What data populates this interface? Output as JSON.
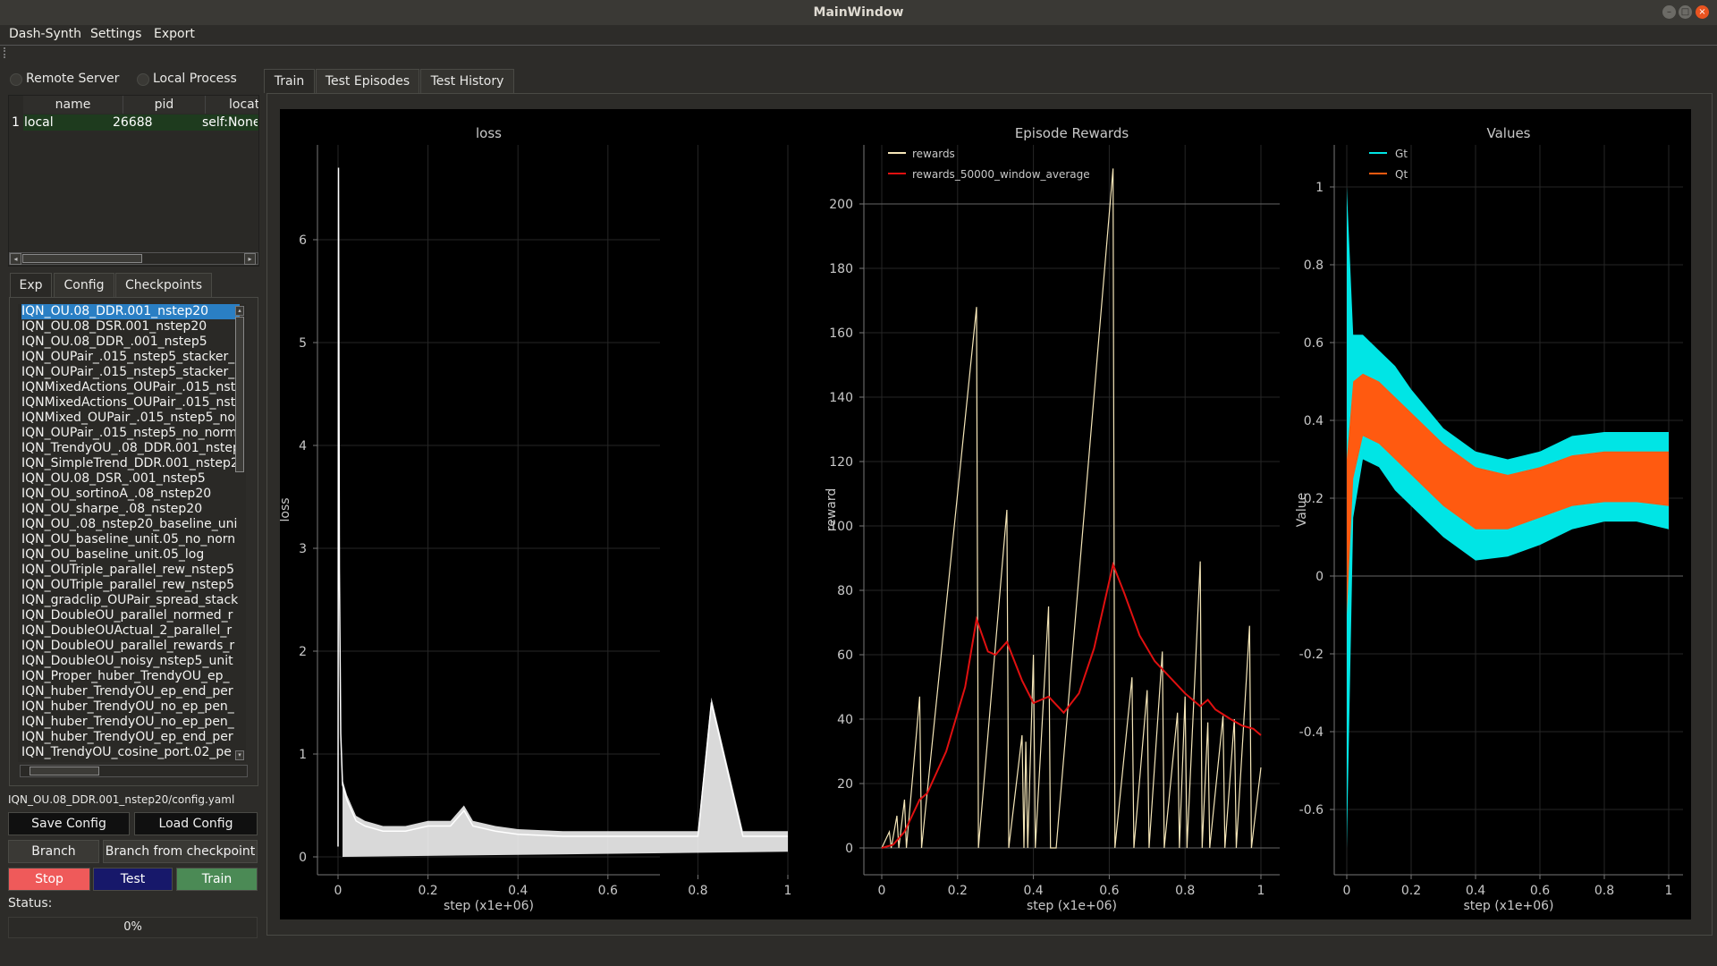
{
  "window": {
    "title": "MainWindow"
  },
  "menu": [
    "Dash-Synth",
    "Settings",
    "Export"
  ],
  "radios": {
    "remote": "Remote Server",
    "local": "Local Process"
  },
  "process_table": {
    "headers": [
      "name",
      "pid",
      "locatio"
    ],
    "rows": [
      {
        "index": "1",
        "name": "local",
        "pid": "26688",
        "location": "self:None"
      }
    ]
  },
  "left_tabs": [
    "Exp",
    "Config",
    "Checkpoints"
  ],
  "experiments": [
    "IQN_OU.08_DDR.001_nstep20",
    "IQN_OU.08_DSR.001_nstep20",
    "IQN_OU.08_DDR_.001_nstep5",
    "IQN_OUPair_.015_nstep5_stacker_",
    "IQN_OUPair_.015_nstep5_stacker_",
    "IQNMixedActions_OUPair_.015_nst",
    "IQNMixedActions_OUPair_.015_nst",
    "IQNMixed_OUPair_.015_nstep5_no",
    "IQN_OUPair_.015_nstep5_no_norm",
    "IQN_TrendyOU_.08_DDR.001_nstep",
    "IQN_SimpleTrend_DDR.001_nstep2",
    "IQN_OU.08_DSR_.001_nstep5",
    "IQN_OU_sortinoA_.08_nstep20",
    "IQN_OU_sharpe_.08_nstep20",
    "IQN_OU_.08_nstep20_baseline_uni",
    "IQN_OU_baseline_unit.05_no_norn",
    "IQN_OU_baseline_unit.05_log",
    "IQN_OUTriple_parallel_rew_nstep5",
    "IQN_OUTriple_parallel_rew_nstep5",
    "IQN_gradclip_OUPair_spread_stack",
    "IQN_DoubleOU_parallel_normed_r",
    "IQN_DoubleOUActual_2_parallel_r",
    "IQN_DoubleOU_parallel_rewards_r",
    "IQN_DoubleOU_noisy_nstep5_unit",
    "IQN_Proper_huber_TrendyOU_ep_",
    "IQN_huber_TrendyOU_ep_end_per",
    "IQN_huber_TrendyOU_no_ep_pen_",
    "IQN_huber_TrendyOU_no_ep_pen_",
    "IQN_huber_TrendyOU_ep_end_per",
    "IQN_TrendyOU_cosine_port.02_pe"
  ],
  "selected_experiment_index": 0,
  "config_path": "IQN_OU.08_DDR.001_nstep20/config.yaml",
  "buttons": {
    "save_config": "Save Config",
    "load_config": "Load Config",
    "branch": "Branch",
    "branch_from_checkpoint": "Branch from checkpoint",
    "stop": "Stop",
    "test": "Test",
    "train": "Train"
  },
  "status_label": "Status:",
  "progress": {
    "value": 0,
    "text": "0%"
  },
  "main_tabs": [
    "Train",
    "Test Episodes",
    "Test History"
  ],
  "colors": {
    "rewards": "#f5e6b8",
    "average": "#e01010",
    "gt": "#00e5e5",
    "qt": "#ff5a10",
    "loss": "#ffffff"
  },
  "chart_data": [
    {
      "type": "line",
      "title": "loss",
      "xlabel": "step (x1e+06)",
      "ylabel": "loss",
      "xlim": [
        0,
        1
      ],
      "ylim": [
        -0.1,
        6.9
      ],
      "xticks": [
        "0",
        "0.2",
        "0.4",
        "0.6",
        "0.8",
        "1"
      ],
      "yticks": [
        "0",
        "1",
        "2",
        "3",
        "4",
        "5",
        "6"
      ],
      "series": [
        {
          "x": [
            0,
            0.001,
            0.003,
            0.006,
            0.01,
            0.02,
            0.04,
            0.06,
            0.1,
            0.15,
            0.2,
            0.25,
            0.28,
            0.3,
            0.35,
            0.4,
            0.5,
            0.6,
            0.7,
            0.8,
            0.83,
            0.9,
            1.0
          ],
          "y": [
            0.1,
            6.7,
            2.8,
            1.2,
            0.7,
            0.55,
            0.35,
            0.3,
            0.25,
            0.25,
            0.3,
            0.3,
            0.45,
            0.3,
            0.25,
            0.22,
            0.2,
            0.2,
            0.2,
            0.2,
            1.5,
            0.2,
            0.2
          ]
        }
      ],
      "grid": true
    },
    {
      "type": "line",
      "title": "Episode Rewards",
      "xlabel": "step (x1e+06)",
      "ylabel": "reward",
      "xlim": [
        0,
        1
      ],
      "ylim": [
        -5,
        215
      ],
      "xticks": [
        "0",
        "0.2",
        "0.4",
        "0.6",
        "0.8",
        "1"
      ],
      "yticks": [
        "0",
        "20",
        "40",
        "60",
        "80",
        "100",
        "120",
        "140",
        "160",
        "180",
        "200"
      ],
      "series": [
        {
          "name": "rewards",
          "x": [
            0,
            0.02,
            0.025,
            0.04,
            0.045,
            0.06,
            0.065,
            0.1,
            0.105,
            0.25,
            0.255,
            0.33,
            0.335,
            0.37,
            0.375,
            0.38,
            0.385,
            0.4,
            0.405,
            0.44,
            0.445,
            0.45,
            0.46,
            0.61,
            0.615,
            0.66,
            0.665,
            0.7,
            0.705,
            0.74,
            0.745,
            0.78,
            0.785,
            0.8,
            0.805,
            0.84,
            0.845,
            0.86,
            0.865,
            0.9,
            0.905,
            0.93,
            0.935,
            0.97,
            0.975,
            1.0
          ],
          "y": [
            0,
            5,
            0,
            10,
            0,
            15,
            0,
            47,
            0,
            168,
            0,
            105,
            0,
            35,
            0,
            33,
            0,
            60,
            0,
            75,
            0,
            0,
            0,
            211,
            0,
            53,
            0,
            49,
            0,
            61,
            0,
            42,
            0,
            47,
            0,
            89,
            0,
            39,
            0,
            41,
            0,
            40,
            0,
            69,
            0,
            25
          ]
        },
        {
          "name": "rewards_50000_window_average",
          "x": [
            0,
            0.03,
            0.06,
            0.1,
            0.12,
            0.17,
            0.22,
            0.25,
            0.28,
            0.3,
            0.33,
            0.37,
            0.4,
            0.44,
            0.48,
            0.52,
            0.56,
            0.61,
            0.64,
            0.68,
            0.72,
            0.76,
            0.8,
            0.84,
            0.86,
            0.88,
            0.92,
            0.95,
            0.98,
            1.0
          ],
          "y": [
            0,
            1,
            5,
            15,
            17,
            30,
            50,
            71,
            61,
            60,
            64,
            52,
            45,
            47,
            42,
            48,
            62,
            88,
            79,
            66,
            58,
            53,
            48,
            44,
            46,
            43,
            40,
            38,
            37,
            35
          ]
        }
      ],
      "legend": "top-left",
      "grid": true
    },
    {
      "type": "area",
      "title": "Values",
      "xlabel": "step (x1e+06)",
      "ylabel": "Value",
      "xlim": [
        0,
        1
      ],
      "ylim": [
        -0.78,
        1.07
      ],
      "xticks": [
        "0",
        "0.2",
        "0.4",
        "0.6",
        "0.8",
        "1"
      ],
      "yticks": [
        "-0.6",
        "-0.4",
        "-0.2",
        "0",
        "0.2",
        "0.4",
        "0.6",
        "0.8",
        "1"
      ],
      "series": [
        {
          "name": "Gt",
          "x": [
            0,
            0.02,
            0.05,
            0.1,
            0.15,
            0.2,
            0.3,
            0.4,
            0.5,
            0.6,
            0.7,
            0.8,
            0.9,
            1.0
          ],
          "upper": [
            1.0,
            0.62,
            0.62,
            0.58,
            0.54,
            0.48,
            0.38,
            0.32,
            0.3,
            0.32,
            0.36,
            0.37,
            0.37,
            0.37
          ],
          "lower": [
            -0.7,
            0.15,
            0.3,
            0.28,
            0.22,
            0.18,
            0.1,
            0.04,
            0.05,
            0.08,
            0.12,
            0.14,
            0.14,
            0.12
          ]
        },
        {
          "name": "Qt",
          "x": [
            0,
            0.02,
            0.05,
            0.1,
            0.15,
            0.2,
            0.3,
            0.4,
            0.5,
            0.6,
            0.7,
            0.8,
            0.9,
            1.0
          ],
          "upper": [
            0.3,
            0.5,
            0.52,
            0.5,
            0.46,
            0.42,
            0.34,
            0.28,
            0.26,
            0.28,
            0.31,
            0.32,
            0.32,
            0.32
          ],
          "lower": [
            -0.1,
            0.25,
            0.36,
            0.34,
            0.3,
            0.26,
            0.18,
            0.12,
            0.12,
            0.15,
            0.18,
            0.19,
            0.19,
            0.18
          ]
        }
      ],
      "legend": "top-left",
      "grid": true
    }
  ]
}
